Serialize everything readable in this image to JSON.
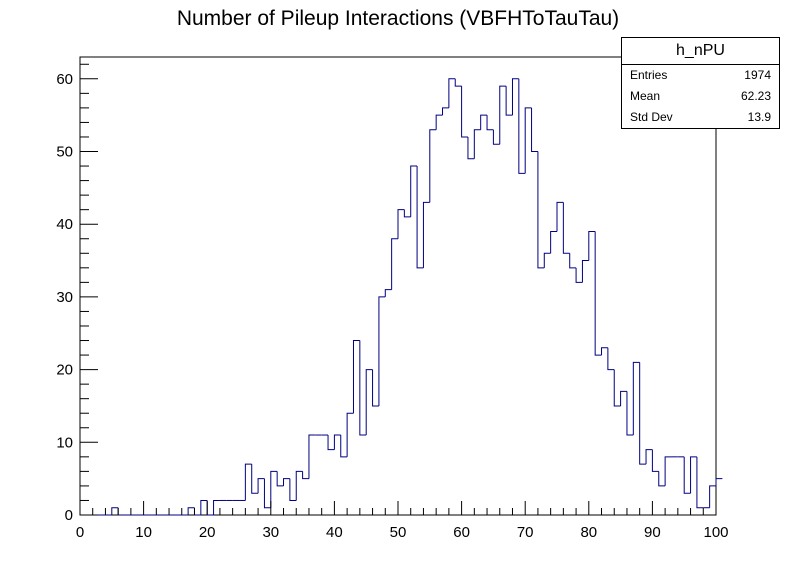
{
  "chart_data": {
    "type": "bar",
    "title": "Number of Pileup Interactions (VBFHToTauTau)",
    "xlabel": "",
    "ylabel": "",
    "xlim": [
      0,
      100
    ],
    "ylim": [
      0,
      63
    ],
    "xticks": [
      0,
      10,
      20,
      30,
      40,
      50,
      60,
      70,
      80,
      90,
      100
    ],
    "yticks": [
      0,
      10,
      20,
      30,
      40,
      50,
      60
    ],
    "line_color": "#000080",
    "bin_width": 1,
    "values": [
      0,
      0,
      0,
      0,
      0,
      1,
      0,
      0,
      0,
      0,
      0,
      0,
      0,
      0,
      0,
      0,
      0,
      1,
      0,
      2,
      0,
      2,
      2,
      2,
      2,
      2,
      7,
      3,
      5,
      1,
      6,
      4,
      5,
      2,
      6,
      5,
      11,
      11,
      11,
      9,
      11,
      8,
      14,
      24,
      11,
      20,
      15,
      30,
      31,
      38,
      42,
      41,
      48,
      34,
      43,
      53,
      55,
      56,
      60,
      59,
      52,
      49,
      53,
      55,
      53,
      51,
      59,
      55,
      60,
      47,
      56,
      50,
      34,
      36,
      39,
      43,
      36,
      34,
      32,
      35,
      39,
      22,
      23,
      20,
      15,
      17,
      11,
      21,
      7,
      9,
      6,
      4,
      8,
      8,
      8,
      3,
      8,
      1,
      1,
      4,
      5
    ],
    "stats": {
      "name": "h_nPU",
      "rows": [
        {
          "label": "Entries",
          "value": "1974"
        },
        {
          "label": "Mean",
          "value": "62.23"
        },
        {
          "label": "Std Dev",
          "value": "13.9"
        }
      ]
    }
  }
}
